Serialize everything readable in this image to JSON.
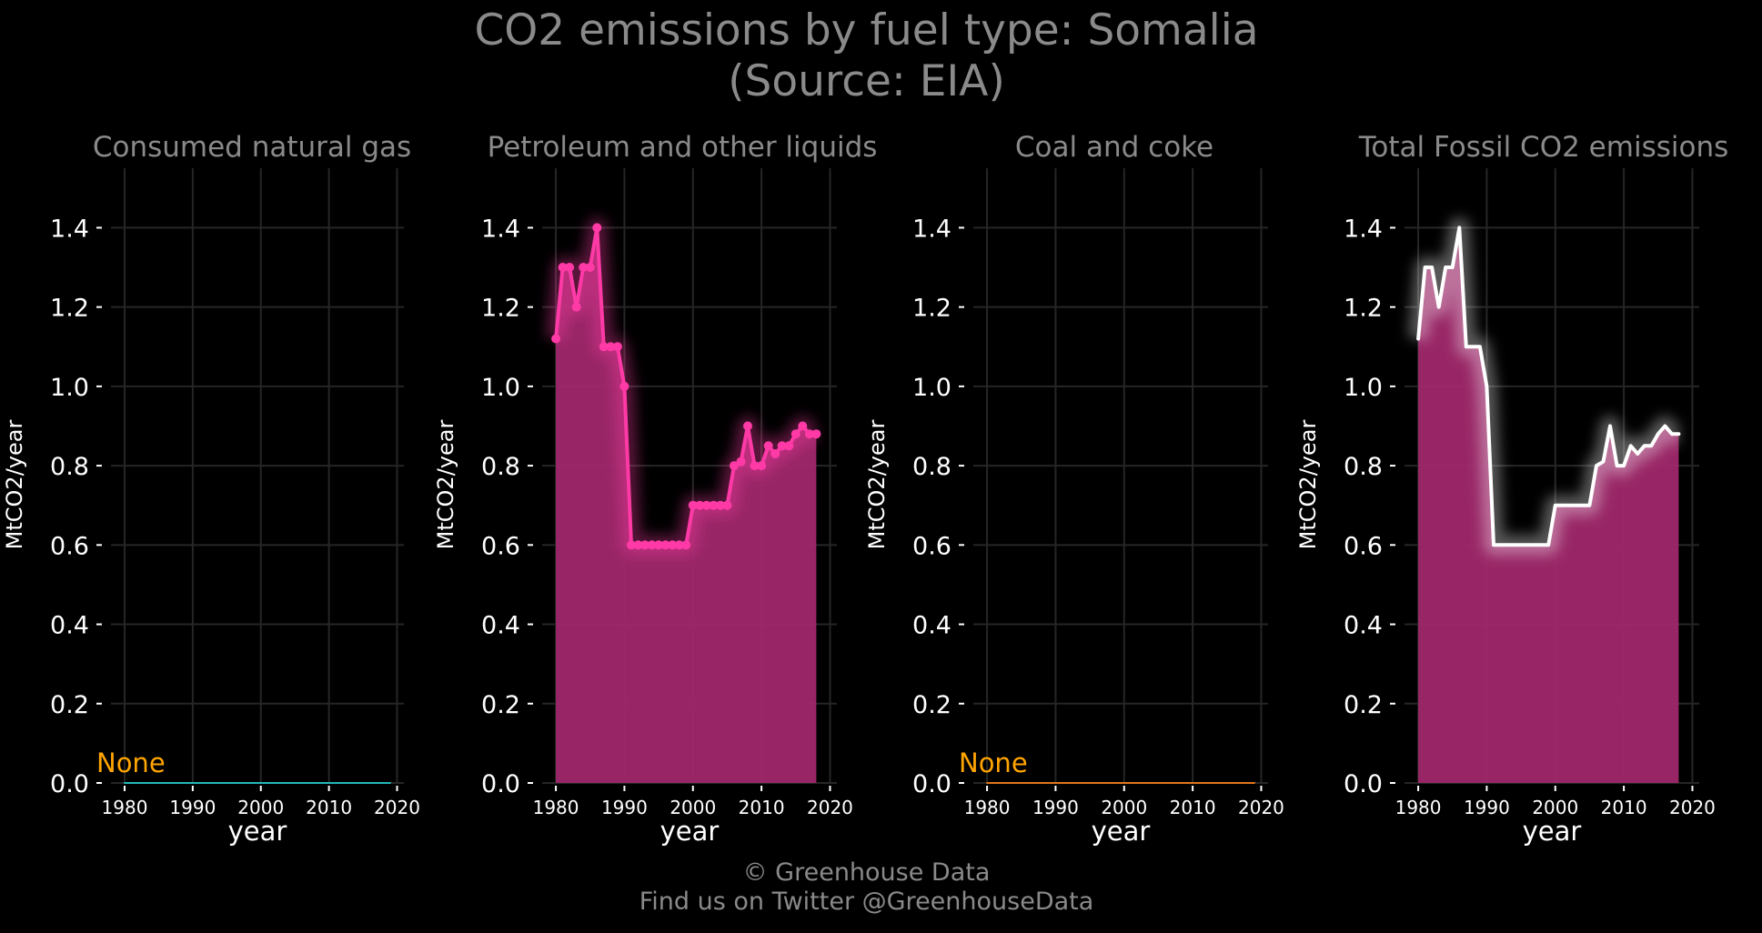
{
  "title": {
    "line1": "CO2 emissions by fuel type: Somalia",
    "line2": "(Source: EIA)"
  },
  "footer": {
    "line1": "© Greenhouse Data",
    "line2": "Find us on Twitter @GreenhouseData"
  },
  "colors": {
    "background": "#000000",
    "grid": "#262626",
    "text_muted": "#8a8a8a",
    "tick_text": "#ffffff",
    "gas_line": "#22b8b8",
    "petroleum_line": "#ff3aa6",
    "fill": "#a0286c",
    "coal_line": "#e0771b",
    "total_line": "#ffffff",
    "none_label": "#ffa500"
  },
  "chart_data": [
    {
      "type": "line",
      "title": "Consumed natural gas",
      "xlabel": "year",
      "ylabel": "MtCO2/year",
      "xlim": [
        1978,
        2021
      ],
      "ylim": [
        0,
        1.55
      ],
      "xticks": [
        "1980",
        "1990",
        "2000",
        "2010",
        "2020"
      ],
      "yticks": [
        "0.0",
        "0.2",
        "0.4",
        "0.6",
        "0.8",
        "1.0",
        "1.2",
        "1.4"
      ],
      "grid": true,
      "annotation": "None",
      "series": [
        {
          "x": [
            1980,
            2019
          ],
          "y": [
            0,
            0
          ],
          "color": "gas_line",
          "markers": false,
          "fill": false
        }
      ]
    },
    {
      "type": "area",
      "title": "Petroleum and other liquids",
      "xlabel": "year",
      "ylabel": "MtCO2/year",
      "xlim": [
        1978,
        2021
      ],
      "ylim": [
        0,
        1.55
      ],
      "xticks": [
        "1980",
        "1990",
        "2000",
        "2010",
        "2020"
      ],
      "yticks": [
        "0.0",
        "0.2",
        "0.4",
        "0.6",
        "0.8",
        "1.0",
        "1.2",
        "1.4"
      ],
      "grid": true,
      "series": [
        {
          "x": [
            1980,
            1981,
            1982,
            1983,
            1984,
            1985,
            1986,
            1987,
            1988,
            1989,
            1990,
            1991,
            1992,
            1993,
            1994,
            1995,
            1996,
            1997,
            1998,
            1999,
            2000,
            2001,
            2002,
            2003,
            2004,
            2005,
            2006,
            2007,
            2008,
            2009,
            2010,
            2011,
            2012,
            2013,
            2014,
            2015,
            2016,
            2017,
            2018
          ],
          "y": [
            1.12,
            1.3,
            1.3,
            1.2,
            1.3,
            1.3,
            1.4,
            1.1,
            1.1,
            1.1,
            1.0,
            0.6,
            0.6,
            0.6,
            0.6,
            0.6,
            0.6,
            0.6,
            0.6,
            0.6,
            0.7,
            0.7,
            0.7,
            0.7,
            0.7,
            0.7,
            0.8,
            0.81,
            0.9,
            0.8,
            0.8,
            0.85,
            0.83,
            0.85,
            0.85,
            0.88,
            0.9,
            0.88,
            0.88
          ],
          "color": "petroleum_line",
          "markers": true,
          "fill": true
        }
      ]
    },
    {
      "type": "line",
      "title": "Coal and coke",
      "xlabel": "year",
      "ylabel": "MtCO2/year",
      "xlim": [
        1978,
        2021
      ],
      "ylim": [
        0,
        1.55
      ],
      "xticks": [
        "1980",
        "1990",
        "2000",
        "2010",
        "2020"
      ],
      "yticks": [
        "0.0",
        "0.2",
        "0.4",
        "0.6",
        "0.8",
        "1.0",
        "1.2",
        "1.4"
      ],
      "grid": true,
      "annotation": "None",
      "series": [
        {
          "x": [
            1980,
            2019
          ],
          "y": [
            0,
            0
          ],
          "color": "coal_line",
          "markers": false,
          "fill": false
        }
      ]
    },
    {
      "type": "area",
      "title": "Total Fossil CO2 emissions",
      "xlabel": "year",
      "ylabel": "MtCO2/year",
      "xlim": [
        1978,
        2021
      ],
      "ylim": [
        0,
        1.55
      ],
      "xticks": [
        "1980",
        "1990",
        "2000",
        "2010",
        "2020"
      ],
      "yticks": [
        "0.0",
        "0.2",
        "0.4",
        "0.6",
        "0.8",
        "1.0",
        "1.2",
        "1.4"
      ],
      "grid": true,
      "series": [
        {
          "x": [
            1980,
            1981,
            1982,
            1983,
            1984,
            1985,
            1986,
            1987,
            1988,
            1989,
            1990,
            1991,
            1992,
            1993,
            1994,
            1995,
            1996,
            1997,
            1998,
            1999,
            2000,
            2001,
            2002,
            2003,
            2004,
            2005,
            2006,
            2007,
            2008,
            2009,
            2010,
            2011,
            2012,
            2013,
            2014,
            2015,
            2016,
            2017,
            2018
          ],
          "y": [
            1.12,
            1.3,
            1.3,
            1.2,
            1.3,
            1.3,
            1.4,
            1.1,
            1.1,
            1.1,
            1.0,
            0.6,
            0.6,
            0.6,
            0.6,
            0.6,
            0.6,
            0.6,
            0.6,
            0.6,
            0.7,
            0.7,
            0.7,
            0.7,
            0.7,
            0.7,
            0.8,
            0.81,
            0.9,
            0.8,
            0.8,
            0.85,
            0.83,
            0.85,
            0.85,
            0.88,
            0.9,
            0.88,
            0.88
          ],
          "color": "total_line",
          "markers": false,
          "fill": true
        }
      ]
    }
  ]
}
